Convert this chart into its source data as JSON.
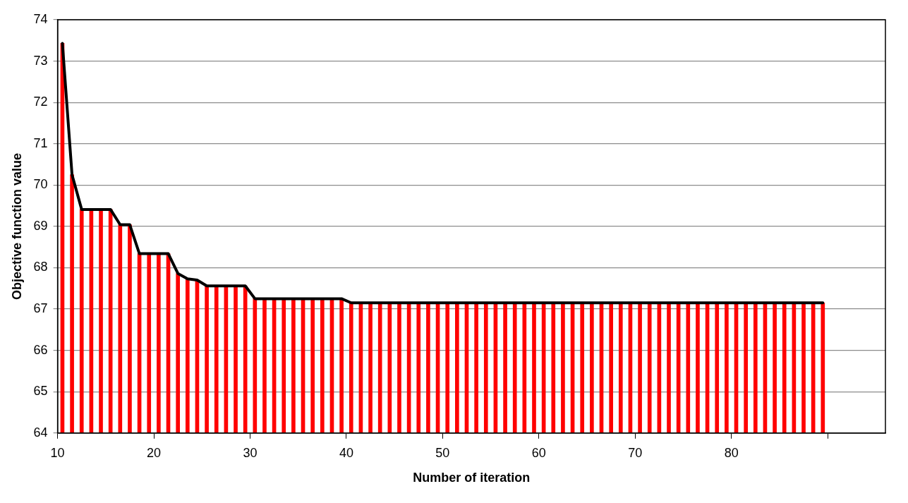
{
  "chart_data": {
    "type": "bar",
    "xlabel": "Number of iteration",
    "ylabel": "Objective function value",
    "x": [
      10.5,
      11.5,
      12.5,
      13.5,
      14.5,
      15.5,
      16.5,
      17.5,
      18.5,
      19.5,
      20.5,
      21.5,
      22.5,
      23.5,
      24.5,
      25.5,
      26.5,
      27.5,
      28.5,
      29.5,
      30.5,
      31.5,
      32.5,
      33.5,
      34.5,
      35.5,
      36.5,
      37.5,
      38.5,
      39.5,
      40.5,
      41.5,
      42.5,
      43.5,
      44.5,
      45.5,
      46.5,
      47.5,
      48.5,
      49.5,
      50.5,
      51.5,
      52.5,
      53.5,
      54.5,
      55.5,
      56.5,
      57.5,
      58.5,
      59.5,
      60.5,
      61.5,
      62.5,
      63.5,
      64.5,
      65.5,
      66.5,
      67.5,
      68.5,
      69.5,
      70.5,
      71.5,
      72.5,
      73.5,
      74.5,
      75.5,
      76.5,
      77.5,
      78.5,
      79.5,
      80.5,
      81.5,
      82.5,
      83.5,
      84.5,
      85.5,
      86.5,
      87.5,
      88.5,
      89.5
    ],
    "series": [
      {
        "color": "#ff0000",
        "values": [
          73.43,
          70.25,
          69.41,
          69.41,
          69.41,
          69.41,
          69.04,
          69.04,
          68.34,
          68.34,
          68.34,
          68.34,
          67.86,
          67.73,
          67.7,
          67.56,
          67.56,
          67.56,
          67.56,
          67.56,
          67.25,
          67.25,
          67.25,
          67.25,
          67.25,
          67.25,
          67.25,
          67.25,
          67.25,
          67.25,
          67.15,
          67.15,
          67.15,
          67.15,
          67.15,
          67.15,
          67.15,
          67.15,
          67.15,
          67.15,
          67.15,
          67.15,
          67.15,
          67.15,
          67.15,
          67.15,
          67.15,
          67.15,
          67.15,
          67.15,
          67.15,
          67.15,
          67.15,
          67.15,
          67.15,
          67.15,
          67.15,
          67.15,
          67.15,
          67.15,
          67.15,
          67.15,
          67.15,
          67.15,
          67.15,
          67.15,
          67.15,
          67.15,
          67.15,
          67.15,
          67.15,
          67.15,
          67.15,
          67.15,
          67.15,
          67.15,
          67.15,
          67.15,
          67.15,
          67.15
        ]
      },
      {
        "type": "line",
        "color": "#000000",
        "values": [
          73.43,
          70.25,
          69.41,
          69.41,
          69.41,
          69.41,
          69.04,
          69.04,
          68.34,
          68.34,
          68.34,
          68.34,
          67.86,
          67.73,
          67.7,
          67.56,
          67.56,
          67.56,
          67.56,
          67.56,
          67.25,
          67.25,
          67.25,
          67.25,
          67.25,
          67.25,
          67.25,
          67.25,
          67.25,
          67.25,
          67.15,
          67.15,
          67.15,
          67.15,
          67.15,
          67.15,
          67.15,
          67.15,
          67.15,
          67.15,
          67.15,
          67.15,
          67.15,
          67.15,
          67.15,
          67.15,
          67.15,
          67.15,
          67.15,
          67.15,
          67.15,
          67.15,
          67.15,
          67.15,
          67.15,
          67.15,
          67.15,
          67.15,
          67.15,
          67.15,
          67.15,
          67.15,
          67.15,
          67.15,
          67.15,
          67.15,
          67.15,
          67.15,
          67.15,
          67.15,
          67.15,
          67.15,
          67.15,
          67.15,
          67.15,
          67.15,
          67.15,
          67.15,
          67.15,
          67.15
        ]
      }
    ],
    "xlim": [
      10,
      96
    ],
    "xticks": [
      10,
      20,
      30,
      40,
      50,
      60,
      70,
      80,
      {
        "value": 90,
        "label": null
      }
    ],
    "ylim": [
      64,
      74
    ],
    "yticks": [
      64,
      65,
      66,
      67,
      68,
      69,
      70,
      71,
      72,
      73,
      74
    ],
    "grid": "y",
    "legend": false,
    "marker": "none",
    "line_style": "solid"
  }
}
